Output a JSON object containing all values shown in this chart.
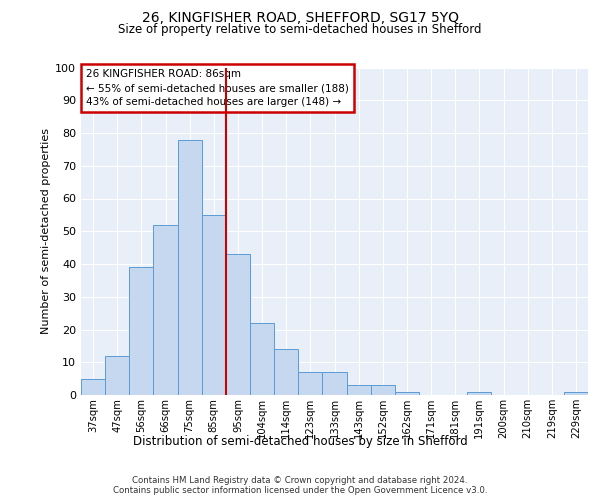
{
  "title_line1": "26, KINGFISHER ROAD, SHEFFORD, SG17 5YQ",
  "title_line2": "Size of property relative to semi-detached houses in Shefford",
  "xlabel": "Distribution of semi-detached houses by size in Shefford",
  "ylabel": "Number of semi-detached properties",
  "categories": [
    "37sqm",
    "47sqm",
    "56sqm",
    "66sqm",
    "75sqm",
    "85sqm",
    "95sqm",
    "104sqm",
    "114sqm",
    "123sqm",
    "133sqm",
    "143sqm",
    "152sqm",
    "162sqm",
    "171sqm",
    "181sqm",
    "191sqm",
    "200sqm",
    "210sqm",
    "219sqm",
    "229sqm"
  ],
  "values": [
    5,
    12,
    39,
    52,
    78,
    55,
    43,
    22,
    14,
    7,
    7,
    3,
    3,
    1,
    0,
    0,
    1,
    0,
    0,
    0,
    1
  ],
  "bar_color": "#c5d8f0",
  "bar_edge_color": "#5b9bd5",
  "vline_color": "#cc0000",
  "vline_x_index": 5,
  "annotation_title": "26 KINGFISHER ROAD: 86sqm",
  "annotation_line1": "← 55% of semi-detached houses are smaller (188)",
  "annotation_line2": "43% of semi-detached houses are larger (148) →",
  "annotation_box_color": "#cc0000",
  "ylim": [
    0,
    100
  ],
  "yticks": [
    0,
    10,
    20,
    30,
    40,
    50,
    60,
    70,
    80,
    90,
    100
  ],
  "background_color": "#e8eff8",
  "grid_color": "#ffffff",
  "footer_line1": "Contains HM Land Registry data © Crown copyright and database right 2024.",
  "footer_line2": "Contains public sector information licensed under the Open Government Licence v3.0."
}
